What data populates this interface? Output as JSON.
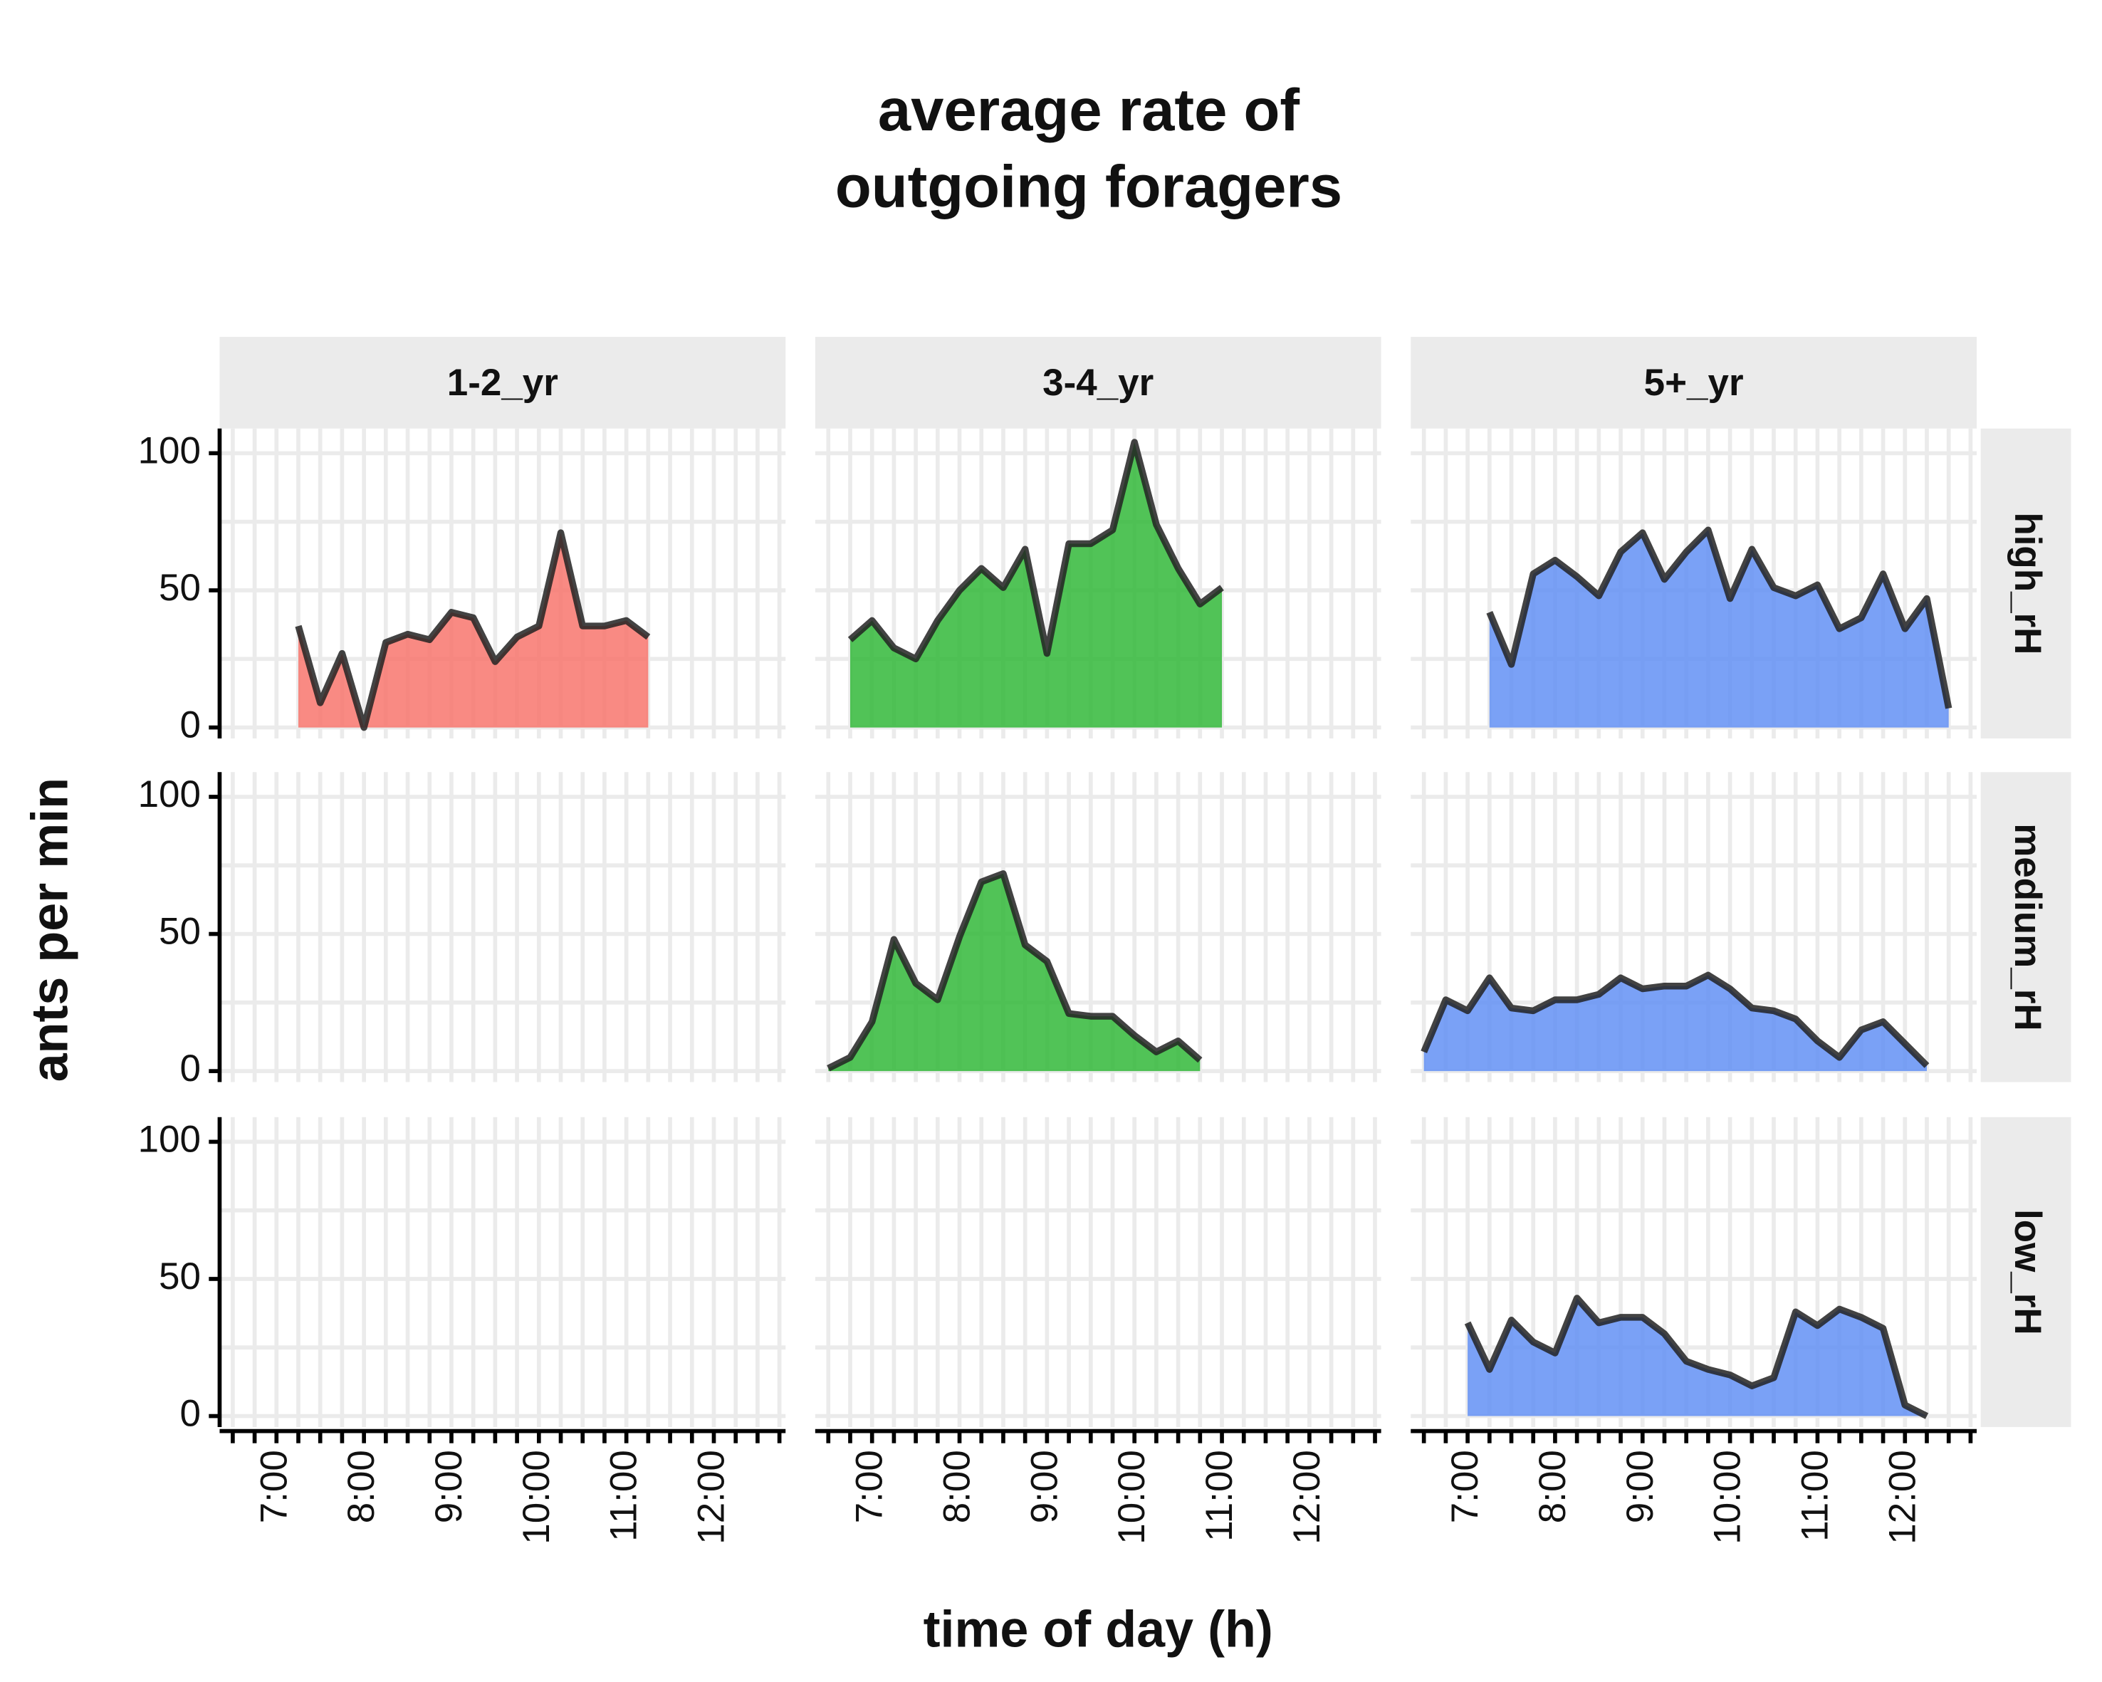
{
  "chart_data": {
    "type": "area",
    "title": [
      "average rate of",
      "outgoing foragers"
    ],
    "xlabel": "time of day (h)",
    "ylabel": "ants per min",
    "grid": true,
    "xlim": [
      6.35,
      12.82
    ],
    "ylim": [
      -4,
      109
    ],
    "xticks": [
      {
        "value": 7,
        "label": "7:00"
      },
      {
        "value": 8,
        "label": "8:00"
      },
      {
        "value": 9,
        "label": "9:00"
      },
      {
        "value": 10,
        "label": "10:00"
      },
      {
        "value": 11,
        "label": "11:00"
      },
      {
        "value": 12,
        "label": "12:00"
      }
    ],
    "xminorticks": [
      6.5,
      6.75,
      7,
      7.25,
      7.5,
      7.75,
      8,
      8.25,
      8.5,
      8.75,
      9,
      9.25,
      9.5,
      9.75,
      10,
      10.25,
      10.5,
      10.75,
      11,
      11.25,
      11.5,
      11.75,
      12,
      12.25,
      12.5,
      12.75
    ],
    "yticks": [
      0,
      50,
      100
    ],
    "yminorticks": [
      25,
      75
    ],
    "line_color": "#222222",
    "columns": [
      {
        "label": "1-2_yr",
        "color": "#F8766D"
      },
      {
        "label": "3-4_yr",
        "color": "#33B83A"
      },
      {
        "label": "5+_yr",
        "color": "#6390F5"
      }
    ],
    "rows": [
      {
        "label": "high_rH",
        "panels": [
          {
            "x": [
              7.25,
              7.5,
              7.75,
              8,
              8.25,
              8.5,
              8.75,
              9,
              9.25,
              9.5,
              9.75,
              10,
              10.25,
              10.5,
              10.75,
              11,
              11.25
            ],
            "values": [
              37,
              9,
              27,
              0,
              31,
              34,
              32,
              42,
              40,
              24,
              33,
              37,
              71,
              37,
              37,
              39,
              33
            ]
          },
          {
            "x": [
              6.75,
              7,
              7.25,
              7.5,
              7.75,
              8,
              8.25,
              8.5,
              8.75,
              9,
              9.25,
              9.5,
              9.75,
              10,
              10.25,
              10.5,
              10.75,
              11
            ],
            "values": [
              32,
              39,
              29,
              25,
              39,
              50,
              58,
              51,
              65,
              27,
              67,
              67,
              72,
              104,
              74,
              58,
              45,
              51
            ]
          },
          {
            "x": [
              7.25,
              7.5,
              7.75,
              8,
              8.25,
              8.5,
              8.75,
              9,
              9.25,
              9.5,
              9.75,
              10,
              10.25,
              10.5,
              10.75,
              11,
              11.25,
              11.5,
              11.75,
              12,
              12.25,
              12.5
            ],
            "values": [
              42,
              23,
              56,
              61,
              55,
              48,
              64,
              71,
              54,
              64,
              72,
              47,
              65,
              51,
              48,
              52,
              36,
              40,
              56,
              36,
              47,
              7
            ]
          }
        ]
      },
      {
        "label": "medium_rH",
        "panels": [
          {
            "x": [],
            "values": []
          },
          {
            "x": [
              6.5,
              6.75,
              7,
              7.25,
              7.5,
              7.75,
              8,
              8.25,
              8.5,
              8.75,
              9,
              9.25,
              9.5,
              9.75,
              10,
              10.25,
              10.5,
              10.75
            ],
            "values": [
              1,
              5,
              18,
              48,
              32,
              26,
              49,
              69,
              72,
              46,
              40,
              21,
              20,
              20,
              13,
              7,
              11,
              4
            ]
          },
          {
            "x": [
              6.5,
              6.75,
              7,
              7.25,
              7.5,
              7.75,
              8,
              8.25,
              8.5,
              8.75,
              9,
              9.25,
              9.5,
              9.75,
              10,
              10.25,
              10.5,
              10.75,
              11,
              11.25,
              11.5,
              11.75,
              12,
              12.25
            ],
            "values": [
              7,
              26,
              22,
              34,
              23,
              22,
              26,
              26,
              28,
              34,
              30,
              31,
              31,
              35,
              30,
              23,
              22,
              19,
              11,
              5,
              15,
              18,
              10,
              2
            ]
          }
        ]
      },
      {
        "label": "low_rH",
        "panels": [
          {
            "x": [],
            "values": []
          },
          {
            "x": [],
            "values": []
          },
          {
            "x": [
              7,
              7.25,
              7.5,
              7.75,
              8,
              8.25,
              8.5,
              8.75,
              9,
              9.25,
              9.5,
              9.75,
              10,
              10.25,
              10.5,
              10.75,
              11,
              11.25,
              11.5,
              11.75,
              12,
              12.25
            ],
            "values": [
              34,
              17,
              35,
              27,
              23,
              43,
              34,
              36,
              36,
              30,
              20,
              17,
              15,
              11,
              14,
              38,
              33,
              39,
              36,
              32,
              4,
              0
            ]
          }
        ]
      }
    ]
  }
}
